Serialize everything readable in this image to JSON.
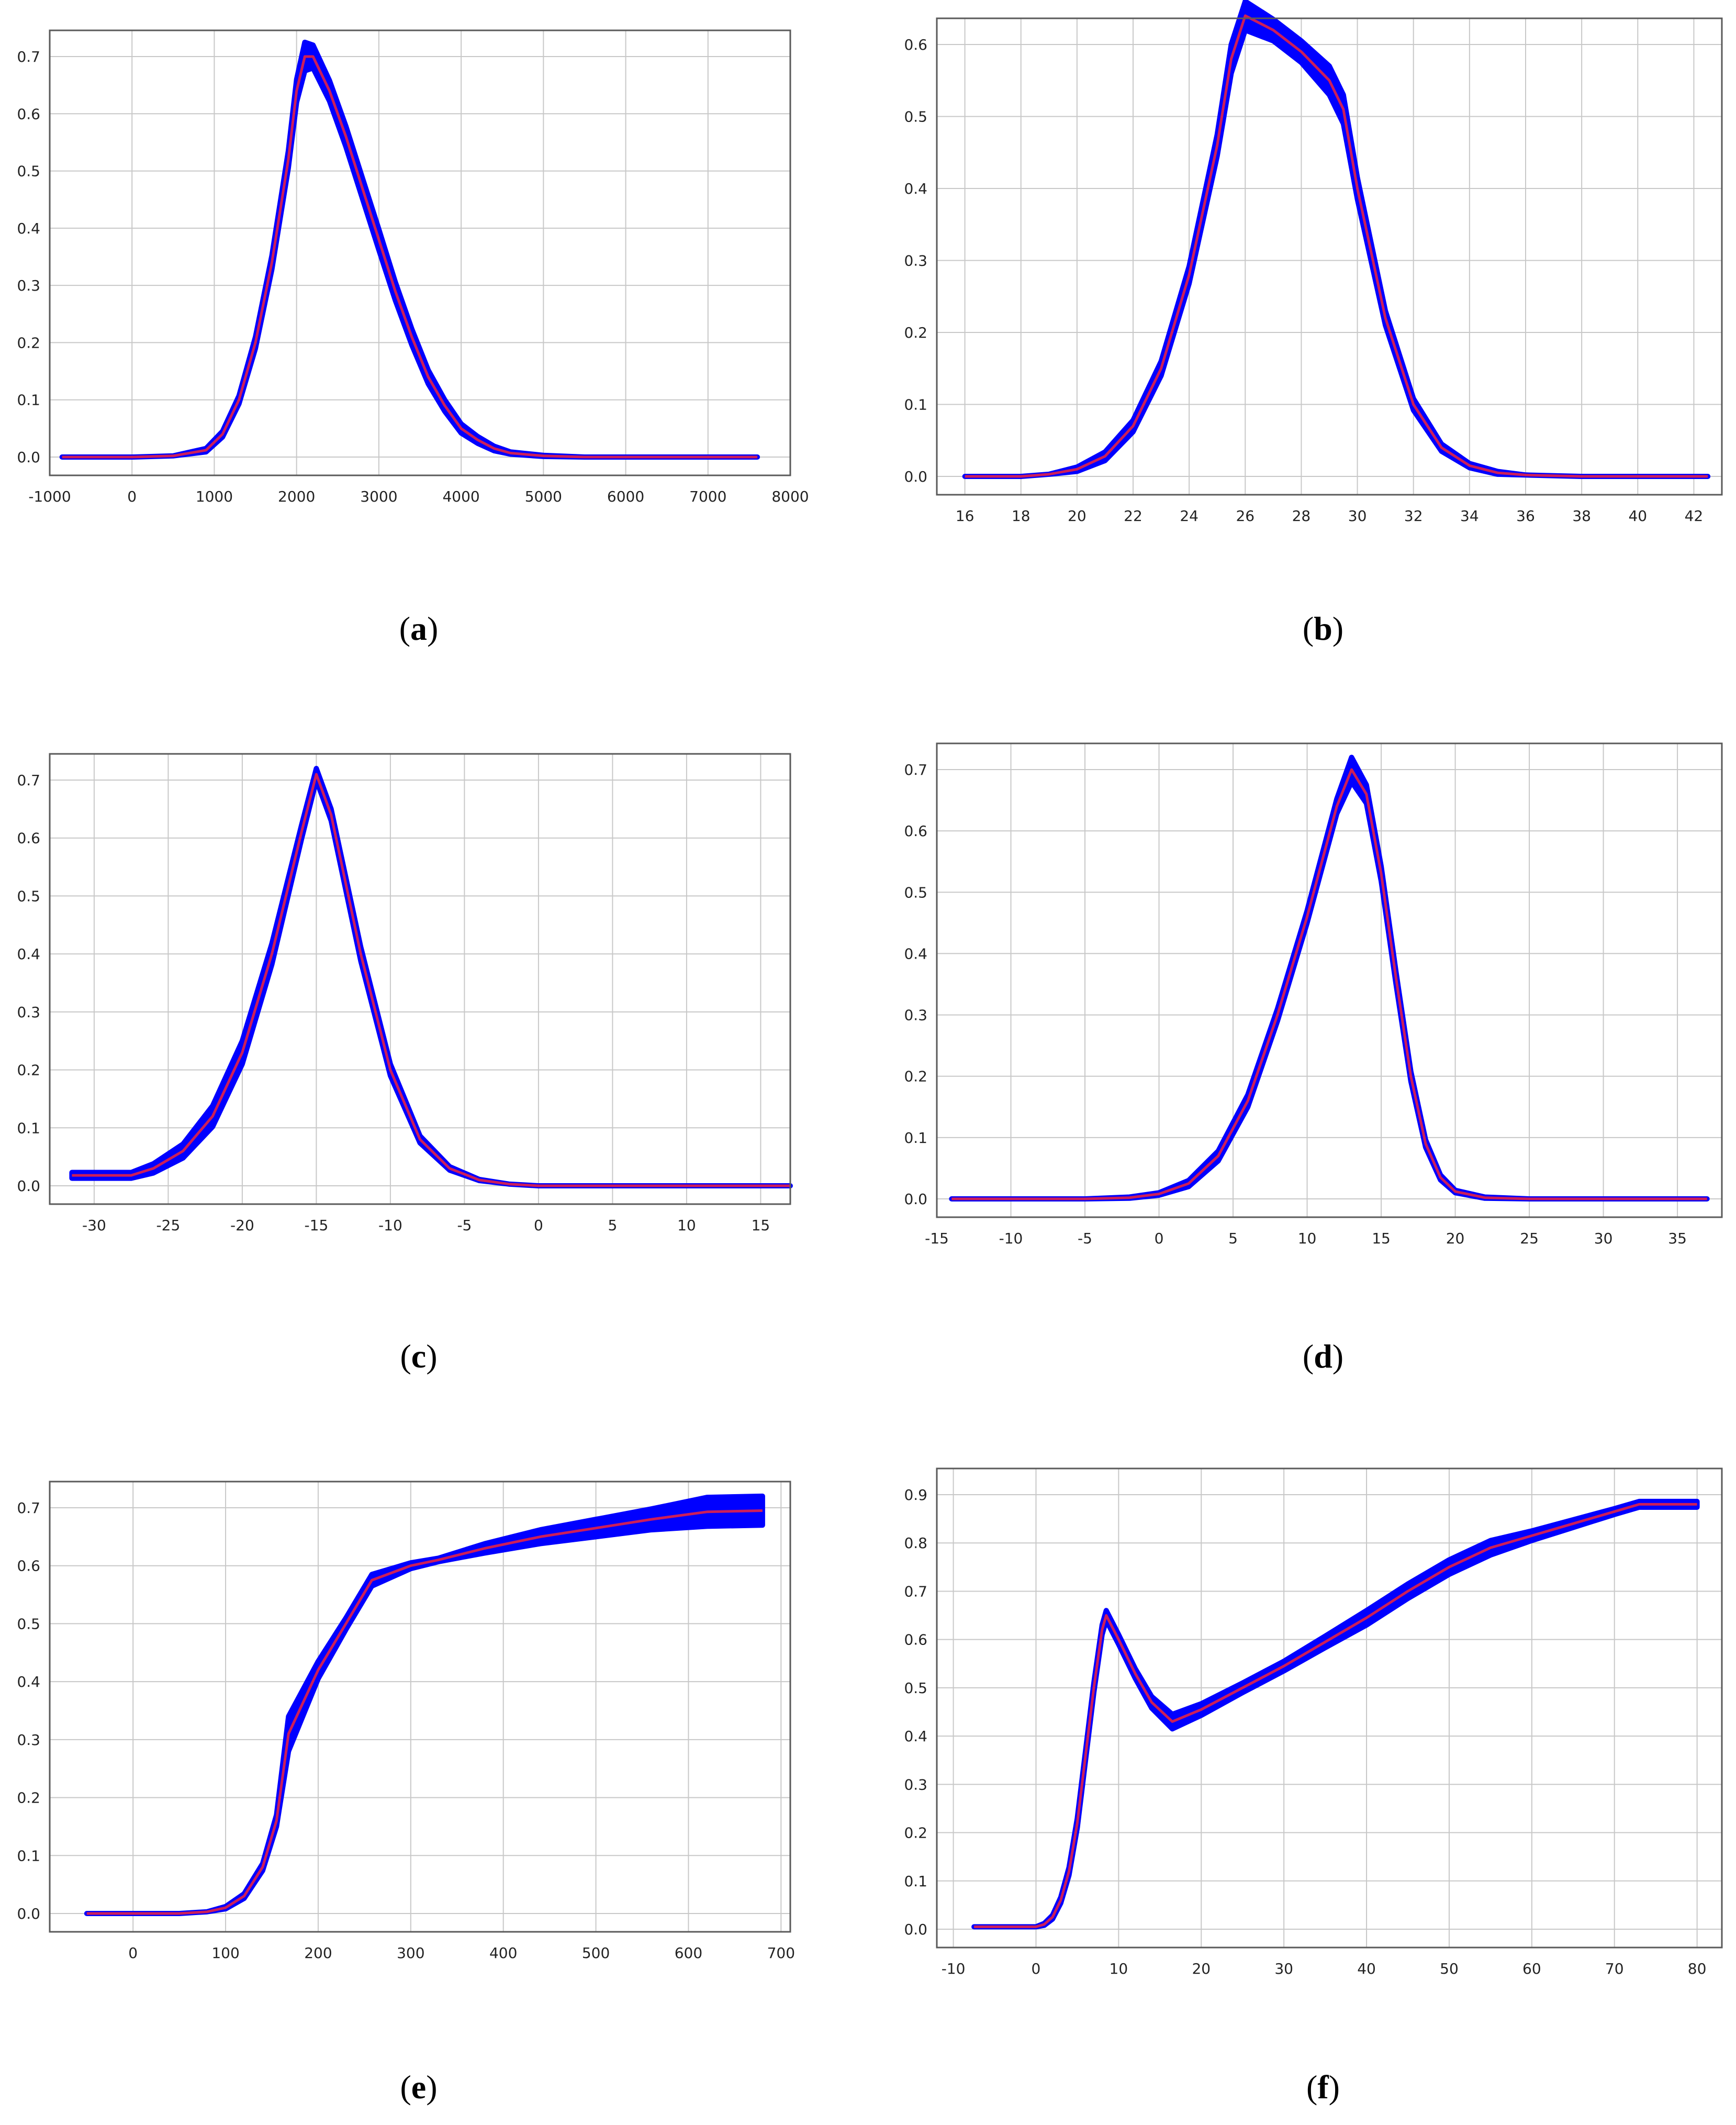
{
  "colors": {
    "band": "#0000ff",
    "line": "#cc1e5a",
    "grid": "#c8c8c8",
    "frame": "#5a5a5a",
    "tick_text": "#222222",
    "caption": "#000000"
  },
  "chart_data": [
    {
      "type": "line",
      "caption_letter": "a",
      "grid": true,
      "xlim": [
        -1000,
        8000
      ],
      "ylim": [
        0,
        0.7
      ],
      "x_ticks": [
        -1000,
        0,
        1000,
        2000,
        3000,
        4000,
        5000,
        6000,
        7000,
        8000
      ],
      "x_tick_labels": [
        "-1000",
        "0",
        "1000",
        "2000",
        "3000",
        "4000",
        "5000",
        "6000",
        "7000",
        "8000"
      ],
      "y_ticks": [
        0,
        0.1,
        0.2,
        0.3,
        0.4,
        0.5,
        0.6,
        0.7
      ],
      "y_tick_labels": [
        "0.0",
        "0.1",
        "0.2",
        "0.3",
        "0.4",
        "0.5",
        "0.6",
        "0.7"
      ],
      "series": [
        {
          "role": "mean",
          "x": [
            -850,
            0,
            500,
            900,
            1100,
            1300,
            1500,
            1700,
            1900,
            2000,
            2100,
            2200,
            2400,
            2600,
            2800,
            3000,
            3200,
            3400,
            3600,
            3800,
            4000,
            4200,
            4400,
            4600,
            5000,
            5500,
            6000,
            7000,
            7600
          ],
          "y": [
            0,
            0,
            0.002,
            0.012,
            0.04,
            0.1,
            0.2,
            0.34,
            0.52,
            0.64,
            0.7,
            0.7,
            0.64,
            0.56,
            0.47,
            0.38,
            0.29,
            0.21,
            0.14,
            0.09,
            0.05,
            0.03,
            0.015,
            0.007,
            0.002,
            0,
            0,
            0,
            0
          ],
          "band": [
            0,
            0,
            0,
            0.003,
            0.005,
            0.007,
            0.01,
            0.012,
            0.015,
            0.02,
            0.025,
            0.02,
            0.018,
            0.018,
            0.018,
            0.018,
            0.016,
            0.014,
            0.012,
            0.01,
            0.008,
            0.006,
            0.004,
            0.002,
            0.001,
            0,
            0,
            0,
            0
          ]
        }
      ]
    },
    {
      "type": "line",
      "caption_letter": "b",
      "grid": true,
      "xlim": [
        15,
        43
      ],
      "ylim": [
        0,
        0.6
      ],
      "x_ticks": [
        16,
        18,
        20,
        22,
        24,
        26,
        28,
        30,
        32,
        34,
        36,
        38,
        40,
        42
      ],
      "x_tick_labels": [
        "16",
        "18",
        "20",
        "22",
        "24",
        "26",
        "28",
        "30",
        "32",
        "34",
        "36",
        "38",
        "40",
        "42"
      ],
      "y_ticks": [
        0,
        0.1,
        0.2,
        0.3,
        0.4,
        0.5,
        0.6
      ],
      "y_tick_labels": [
        "0.0",
        "0.1",
        "0.2",
        "0.3",
        "0.4",
        "0.5",
        "0.6"
      ],
      "series": [
        {
          "role": "mean",
          "x": [
            16,
            18,
            19,
            20,
            21,
            22,
            23,
            24,
            25,
            25.5,
            26,
            27,
            28,
            29,
            29.5,
            30,
            31,
            32,
            33,
            34,
            35,
            36,
            38,
            40,
            42.5
          ],
          "y": [
            0,
            0,
            0.003,
            0.01,
            0.028,
            0.07,
            0.15,
            0.28,
            0.46,
            0.58,
            0.64,
            0.62,
            0.59,
            0.55,
            0.51,
            0.4,
            0.22,
            0.1,
            0.04,
            0.015,
            0.005,
            0.002,
            0,
            0,
            0
          ],
          "band": [
            0,
            0,
            0,
            0.003,
            0.006,
            0.008,
            0.01,
            0.012,
            0.015,
            0.02,
            0.02,
            0.015,
            0.015,
            0.02,
            0.02,
            0.015,
            0.01,
            0.008,
            0.005,
            0.003,
            0.002,
            0,
            0,
            0,
            0
          ]
        }
      ]
    },
    {
      "type": "line",
      "caption_letter": "c",
      "grid": true,
      "xlim": [
        -33,
        17
      ],
      "ylim": [
        0,
        0.7
      ],
      "x_ticks": [
        -30,
        -25,
        -20,
        -15,
        -10,
        -5,
        0,
        5,
        10,
        15
      ],
      "x_tick_labels": [
        "-30",
        "-25",
        "-20",
        "-15",
        "-10",
        "-5",
        "0",
        "5",
        "10",
        "15"
      ],
      "y_ticks": [
        0,
        0.1,
        0.2,
        0.3,
        0.4,
        0.5,
        0.6,
        0.7
      ],
      "y_tick_labels": [
        "0.0",
        "0.1",
        "0.2",
        "0.3",
        "0.4",
        "0.5",
        "0.6",
        "0.7"
      ],
      "series": [
        {
          "role": "mean",
          "x": [
            -31.5,
            -27.5,
            -26,
            -24,
            -22,
            -20,
            -18,
            -16,
            -15,
            -14,
            -12,
            -10,
            -8,
            -6,
            -4,
            -2,
            0,
            2,
            5,
            10,
            17
          ],
          "y": [
            0.018,
            0.018,
            0.03,
            0.06,
            0.12,
            0.23,
            0.4,
            0.61,
            0.71,
            0.64,
            0.4,
            0.2,
            0.08,
            0.03,
            0.01,
            0.003,
            0,
            0,
            0,
            0,
            0
          ],
          "band": [
            0.005,
            0.005,
            0.008,
            0.012,
            0.018,
            0.02,
            0.018,
            0.012,
            0.01,
            0.01,
            0.012,
            0.01,
            0.006,
            0.003,
            0.001,
            0,
            0,
            0,
            0,
            0,
            0
          ]
        }
      ]
    },
    {
      "type": "line",
      "caption_letter": "d",
      "grid": true,
      "xlim": [
        -15,
        38
      ],
      "ylim": [
        0,
        0.7
      ],
      "x_ticks": [
        -15,
        -10,
        -5,
        0,
        5,
        10,
        15,
        20,
        25,
        30,
        35
      ],
      "x_tick_labels": [
        "-15",
        "-10",
        "-5",
        "0",
        "5",
        "10",
        "15",
        "20",
        "25",
        "30",
        "35"
      ],
      "y_ticks": [
        0,
        0.1,
        0.2,
        0.3,
        0.4,
        0.5,
        0.6,
        0.7
      ],
      "y_tick_labels": [
        "0.0",
        "0.1",
        "0.2",
        "0.3",
        "0.4",
        "0.5",
        "0.6",
        "0.7"
      ],
      "series": [
        {
          "role": "mean",
          "x": [
            -14,
            -5,
            -2,
            0,
            2,
            4,
            6,
            8,
            10,
            12,
            13,
            14,
            15,
            16,
            17,
            18,
            19,
            20,
            22,
            25,
            30,
            37
          ],
          "y": [
            0,
            0,
            0.002,
            0.008,
            0.025,
            0.07,
            0.16,
            0.3,
            0.46,
            0.64,
            0.7,
            0.66,
            0.53,
            0.36,
            0.2,
            0.09,
            0.035,
            0.012,
            0.002,
            0,
            0,
            0
          ],
          "band": [
            0,
            0,
            0.001,
            0.002,
            0.005,
            0.008,
            0.01,
            0.01,
            0.01,
            0.012,
            0.02,
            0.015,
            0.012,
            0.01,
            0.008,
            0.006,
            0.004,
            0.002,
            0.001,
            0,
            0,
            0
          ]
        }
      ]
    },
    {
      "type": "line",
      "caption_letter": "e",
      "grid": true,
      "xlim": [
        -90,
        710
      ],
      "ylim": [
        0,
        0.7
      ],
      "x_ticks": [
        0,
        100,
        200,
        300,
        400,
        500,
        600,
        700
      ],
      "x_tick_labels": [
        "0",
        "100",
        "200",
        "300",
        "400",
        "500",
        "600",
        "700"
      ],
      "y_ticks": [
        0,
        0.1,
        0.2,
        0.3,
        0.4,
        0.5,
        0.6,
        0.7
      ],
      "y_tick_labels": [
        "0.0",
        "0.1",
        "0.2",
        "0.3",
        "0.4",
        "0.5",
        "0.6",
        "0.7"
      ],
      "series": [
        {
          "role": "mean",
          "x": [
            -50,
            50,
            80,
            100,
            120,
            140,
            155,
            168,
            200,
            230,
            258,
            300,
            330,
            380,
            440,
            500,
            560,
            620,
            680
          ],
          "y": [
            0,
            0,
            0.003,
            0.01,
            0.03,
            0.08,
            0.16,
            0.31,
            0.42,
            0.5,
            0.575,
            0.6,
            0.61,
            0.63,
            0.65,
            0.665,
            0.68,
            0.693,
            0.695
          ],
          "band": [
            0,
            0,
            0,
            0.002,
            0.004,
            0.006,
            0.01,
            0.03,
            0.015,
            0.01,
            0.01,
            0.005,
            0.003,
            0.008,
            0.012,
            0.015,
            0.018,
            0.025,
            0.025
          ]
        }
      ]
    },
    {
      "type": "line",
      "caption_letter": "f",
      "grid": true,
      "xlim": [
        -12,
        83
      ],
      "ylim": [
        0,
        0.9
      ],
      "x_ticks": [
        -10,
        0,
        10,
        20,
        30,
        40,
        50,
        60,
        70,
        80
      ],
      "x_tick_labels": [
        "-10",
        "0",
        "10",
        "20",
        "30",
        "40",
        "50",
        "60",
        "70",
        "80"
      ],
      "y_ticks": [
        0,
        0.1,
        0.2,
        0.3,
        0.4,
        0.5,
        0.6,
        0.7,
        0.8,
        0.9
      ],
      "y_tick_labels": [
        "0.0",
        "0.1",
        "0.2",
        "0.3",
        "0.4",
        "0.5",
        "0.6",
        "0.7",
        "0.8",
        "0.9"
      ],
      "series": [
        {
          "role": "mean",
          "x": [
            -7.5,
            0,
            1,
            2,
            3,
            4,
            5,
            6,
            7,
            8,
            8.5,
            10,
            12,
            14,
            16.5,
            20,
            25,
            30,
            35,
            40,
            45,
            50,
            55,
            60,
            65,
            70,
            73,
            80
          ],
          "y": [
            0.005,
            0.005,
            0.01,
            0.025,
            0.06,
            0.12,
            0.22,
            0.36,
            0.5,
            0.62,
            0.65,
            0.6,
            0.53,
            0.47,
            0.43,
            0.455,
            0.5,
            0.545,
            0.595,
            0.645,
            0.7,
            0.75,
            0.79,
            0.815,
            0.84,
            0.865,
            0.88,
            0.88
          ],
          "band": [
            0,
            0,
            0.002,
            0.004,
            0.006,
            0.008,
            0.01,
            0.01,
            0.01,
            0.01,
            0.01,
            0.01,
            0.01,
            0.012,
            0.015,
            0.012,
            0.01,
            0.01,
            0.012,
            0.015,
            0.015,
            0.015,
            0.015,
            0.01,
            0.008,
            0.006,
            0.006,
            0.006
          ]
        }
      ]
    }
  ]
}
